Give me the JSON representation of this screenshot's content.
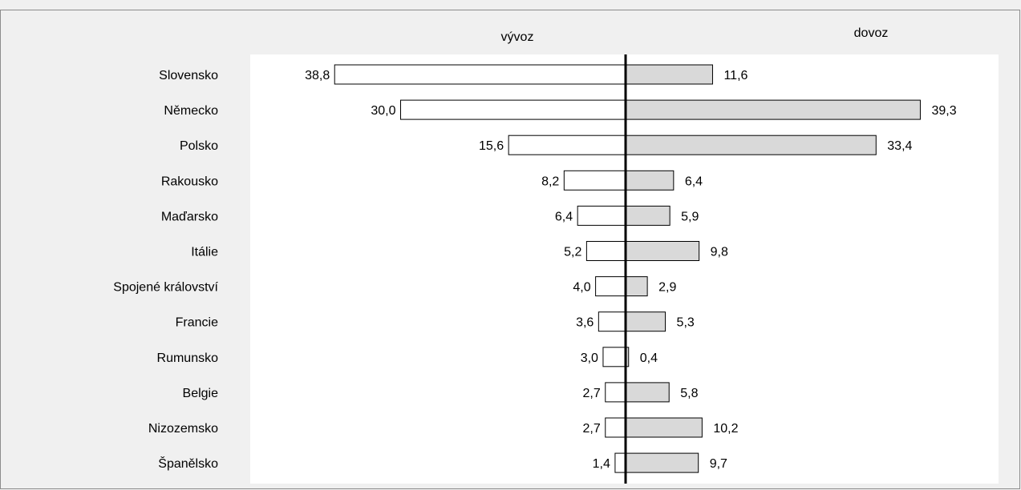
{
  "chart_data": {
    "type": "bar",
    "orientation": "horizontal",
    "layout": "diverging",
    "categories": [
      "Slovensko",
      "Německo",
      "Polsko",
      "Rakousko",
      "Maďarsko",
      "Itálie",
      "Spojené království",
      "Francie",
      "Rumunsko",
      "Belgie",
      "Nizozemsko",
      "Španělsko"
    ],
    "series": [
      {
        "name": "vývoz",
        "side": "left",
        "color": "#ffffff",
        "values": [
          38.8,
          30.0,
          15.6,
          8.2,
          6.4,
          5.2,
          4.0,
          3.6,
          3.0,
          2.7,
          2.7,
          1.4
        ],
        "labels": [
          "38,8",
          "30,0",
          "15,6",
          "8,2",
          "6,4",
          "5,2",
          "4,0",
          "3,6",
          "3,0",
          "2,7",
          "2,7",
          "1,4"
        ]
      },
      {
        "name": "dovoz",
        "side": "right",
        "color": "#d9d9d9",
        "values": [
          11.6,
          39.3,
          33.4,
          6.4,
          5.9,
          9.8,
          2.9,
          5.3,
          0.4,
          5.8,
          10.2,
          9.7
        ],
        "labels": [
          "11,6",
          "39,3",
          "33,4",
          "6,4",
          "5,9",
          "9,8",
          "2,9",
          "5,3",
          "0,4",
          "5,8",
          "10,2",
          "9,7"
        ]
      }
    ],
    "xlim": [
      0,
      40
    ],
    "grid": false,
    "legend": "none",
    "outer_background": "#f0f0f0",
    "plot_background": "#ffffff"
  }
}
